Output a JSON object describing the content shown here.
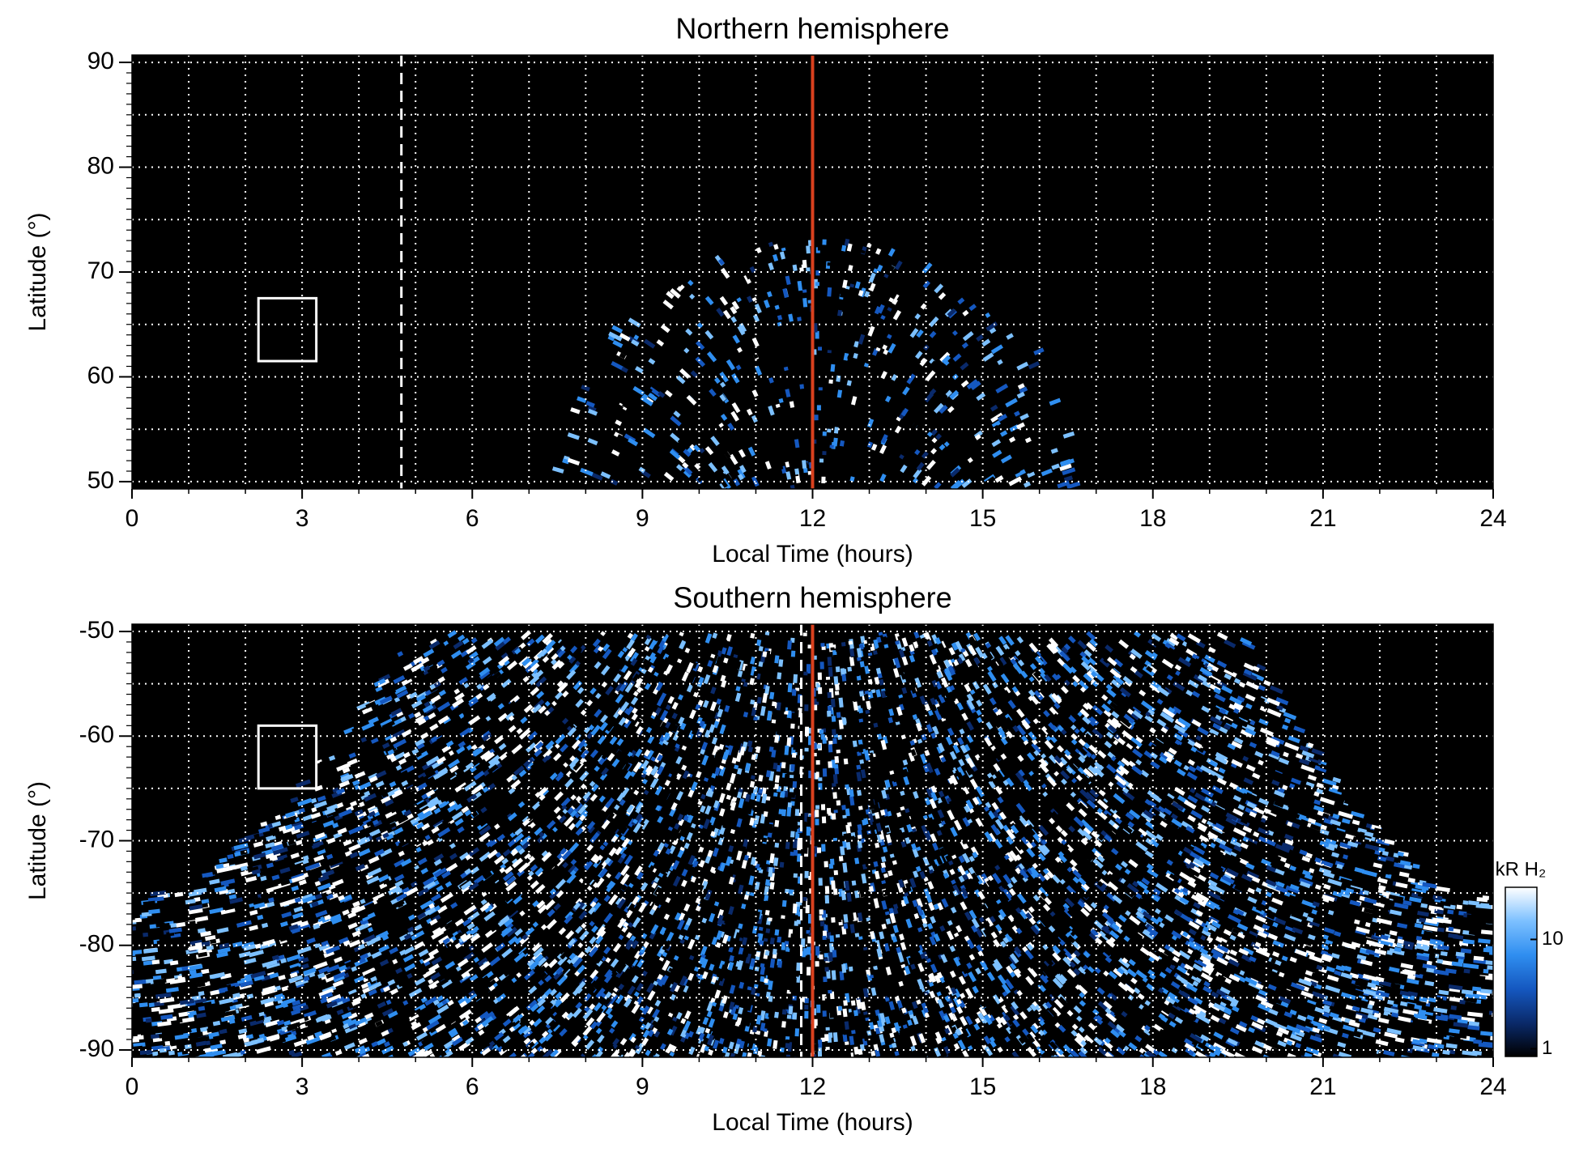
{
  "chart_data": [
    {
      "type": "heatmap",
      "title": "Northern hemisphere",
      "x_label": "Local Time (hours)",
      "y_label": "Latitude (°)",
      "xlim": [
        0,
        24
      ],
      "xticks": [
        0,
        3,
        6,
        9,
        12,
        15,
        18,
        21,
        24
      ],
      "ylim": [
        49.3,
        90.7
      ],
      "yticks": [
        50,
        60,
        70,
        80,
        90
      ],
      "grid": true,
      "reference_lines": [
        {
          "x": 12,
          "color": "#d9411e",
          "style": "solid"
        },
        {
          "x": 4.75,
          "color": "#ffffff",
          "style": "dashed"
        }
      ],
      "box": {
        "x": [
          2.23,
          3.25
        ],
        "y": [
          61.5,
          67.5
        ],
        "color": "#ffffff"
      }
    },
    {
      "type": "heatmap",
      "title": "Southern hemisphere",
      "x_label": "Local Time (hours)",
      "y_label": "Latitude (°)",
      "xlim": [
        0,
        24
      ],
      "xticks": [
        0,
        3,
        6,
        9,
        12,
        15,
        18,
        21,
        24
      ],
      "ylim": [
        -90.7,
        -49.3
      ],
      "yticks": [
        -90,
        -80,
        -70,
        -60,
        -50
      ],
      "grid": true,
      "reference_lines": [
        {
          "x": 12,
          "color": "#d9411e",
          "style": "solid"
        },
        {
          "x": 11.8,
          "color": "#ffffff",
          "style": "dashed"
        }
      ],
      "box": {
        "x": [
          2.23,
          3.25
        ],
        "y": [
          -65,
          -59
        ],
        "color": "#ffffff"
      },
      "colorbar": {
        "label": "kR H₂",
        "log": true,
        "lim": [
          0.85,
          30
        ],
        "ticks": [
          1,
          10
        ],
        "colors": [
          "#000000",
          "#0a2a6b",
          "#1558c0",
          "#2f8ef0",
          "#7cc0ff",
          "#ffffff"
        ]
      }
    }
  ]
}
